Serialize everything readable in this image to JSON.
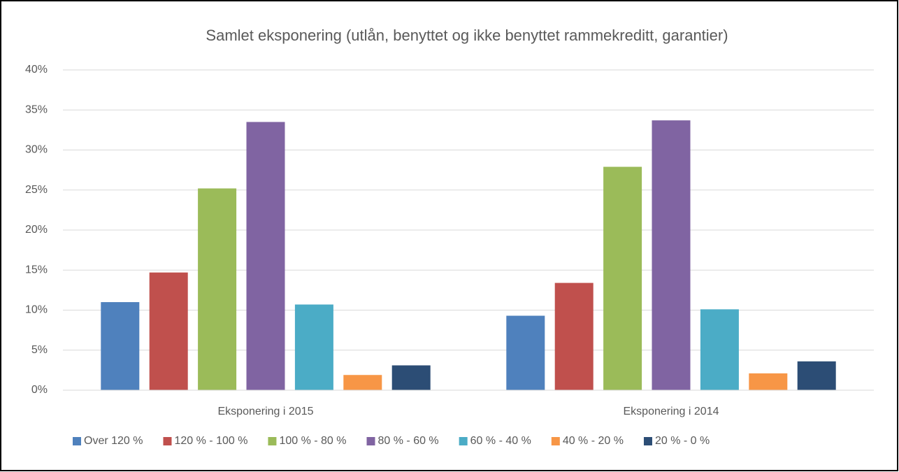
{
  "chart_data": {
    "type": "bar",
    "title": "Samlet eksponering (utlån, benyttet og ikke benyttet rammekreditt, garantier)",
    "categories": [
      "Eksponering i 2015",
      "Eksponering i 2014"
    ],
    "series": [
      {
        "name": "Over 120 %",
        "color": "#4f81bd",
        "values": [
          11.0,
          9.3
        ]
      },
      {
        "name": "120 % - 100 %",
        "color": "#c0504d",
        "values": [
          14.7,
          13.4
        ]
      },
      {
        "name": "100 % - 80 %",
        "color": "#9bbb59",
        "values": [
          25.2,
          27.9
        ]
      },
      {
        "name": "80 % - 60 %",
        "color": "#8064a2",
        "values": [
          33.5,
          33.7
        ]
      },
      {
        "name": "60 % - 40 %",
        "color": "#4bacc6",
        "values": [
          10.7,
          10.1
        ]
      },
      {
        "name": "40 % - 20 %",
        "color": "#f79646",
        "values": [
          1.9,
          2.1
        ]
      },
      {
        "name": "20 % - 0 %",
        "color": "#2c4d75",
        "values": [
          3.1,
          3.6
        ]
      }
    ],
    "ylim": [
      0,
      40
    ],
    "yticks": [
      {
        "value": 0,
        "label": "0%"
      },
      {
        "value": 5,
        "label": "5%"
      },
      {
        "value": 10,
        "label": "10%"
      },
      {
        "value": 15,
        "label": "15%"
      },
      {
        "value": 20,
        "label": "20%"
      },
      {
        "value": 25,
        "label": "25%"
      },
      {
        "value": 30,
        "label": "30%"
      },
      {
        "value": 35,
        "label": "35%"
      },
      {
        "value": 40,
        "label": "40%"
      }
    ],
    "grid": true,
    "legend": "bottom"
  }
}
